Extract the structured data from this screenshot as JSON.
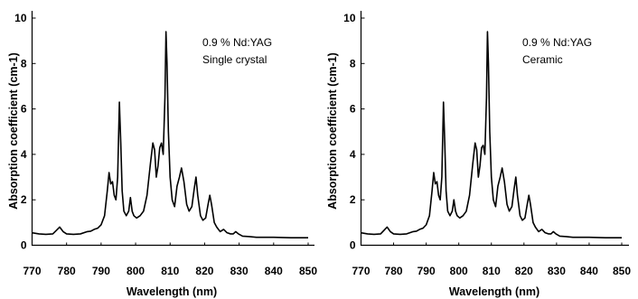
{
  "chart_data": [
    {
      "type": "line",
      "xlabel": "Wavelength (nm)",
      "ylabel": "Absorption coefficient (cm-1)",
      "xlim": [
        770,
        850
      ],
      "ylim": [
        0,
        10
      ],
      "x_ticks": [
        "770",
        "780",
        "790",
        "800",
        "810",
        "820",
        "830",
        "840",
        "850"
      ],
      "y_ticks": [
        "0",
        "2",
        "4",
        "6",
        "8",
        "10"
      ],
      "annotations": [
        "0.9 % Nd:YAG",
        "Single crystal"
      ],
      "grid": false,
      "series": [
        {
          "x": [
            770,
            772,
            774,
            776,
            777,
            778,
            779,
            780,
            782,
            784,
            786,
            787,
            788,
            789,
            790,
            791,
            791.8,
            792.3,
            792.8,
            793.3,
            793.8,
            794.3,
            794.8,
            795.3,
            795.7,
            796.1,
            796.6,
            797.3,
            798,
            798.5,
            799,
            799.5,
            800.3,
            801.3,
            802.3,
            803.3,
            804.3,
            805,
            805.5,
            806,
            806.5,
            807,
            807.5,
            808,
            808.5,
            808.8,
            809.1,
            809.5,
            810,
            810.6,
            811.3,
            812,
            812.7,
            813.3,
            814,
            814.8,
            815.5,
            816.3,
            817,
            817.5,
            818,
            818.8,
            819.5,
            820.3,
            821,
            821.5,
            822,
            822.8,
            823.5,
            824.5,
            825.5,
            826.5,
            827.5,
            828.3,
            829,
            829.8,
            831,
            833,
            835,
            840,
            845,
            850
          ],
          "y": [
            0.55,
            0.5,
            0.48,
            0.5,
            0.65,
            0.8,
            0.6,
            0.5,
            0.48,
            0.5,
            0.6,
            0.62,
            0.7,
            0.75,
            0.9,
            1.3,
            2.4,
            3.2,
            2.7,
            2.8,
            2.2,
            2.0,
            3.0,
            6.3,
            4.5,
            2.4,
            1.5,
            1.3,
            1.5,
            2.1,
            1.5,
            1.3,
            1.2,
            1.3,
            1.5,
            2.2,
            3.6,
            4.5,
            4.2,
            3.0,
            3.5,
            4.3,
            4.5,
            4.0,
            6.5,
            9.4,
            8.0,
            5.0,
            3.0,
            2.0,
            1.7,
            2.6,
            3.0,
            3.4,
            2.8,
            1.8,
            1.5,
            1.7,
            2.5,
            3.0,
            2.2,
            1.3,
            1.1,
            1.2,
            1.8,
            2.2,
            1.8,
            1.0,
            0.8,
            0.6,
            0.7,
            0.55,
            0.5,
            0.5,
            0.6,
            0.5,
            0.4,
            0.38,
            0.35,
            0.35,
            0.33,
            0.33
          ]
        }
      ]
    },
    {
      "type": "line",
      "xlabel": "Wavelength (nm)",
      "ylabel": "Absorption coefficient (cm-1)",
      "xlim": [
        770,
        850
      ],
      "ylim": [
        0,
        10
      ],
      "x_ticks": [
        "770",
        "780",
        "790",
        "800",
        "810",
        "820",
        "830",
        "840",
        "850"
      ],
      "y_ticks": [
        "0",
        "2",
        "4",
        "6",
        "8",
        "10"
      ],
      "annotations": [
        "0.9 % Nd:YAG",
        "Ceramic"
      ],
      "grid": false,
      "series": [
        {
          "x": [
            770,
            772,
            774,
            776,
            777,
            778,
            779,
            780,
            782,
            784,
            786,
            787,
            788,
            789,
            790,
            791,
            791.8,
            792.3,
            792.8,
            793.3,
            793.8,
            794.3,
            794.8,
            795.3,
            795.7,
            796.1,
            796.6,
            797.3,
            798,
            798.5,
            799,
            799.5,
            800.3,
            801.3,
            802.3,
            803.3,
            804.3,
            805,
            805.5,
            806,
            806.5,
            807,
            807.5,
            808,
            808.5,
            808.8,
            809.1,
            809.5,
            810,
            810.6,
            811.3,
            812,
            812.7,
            813.3,
            814,
            814.8,
            815.5,
            816.3,
            817,
            817.5,
            818,
            818.8,
            819.5,
            820.3,
            821,
            821.5,
            822,
            822.8,
            823.5,
            824.5,
            825.5,
            826.5,
            827.5,
            828.3,
            829,
            829.8,
            831,
            833,
            835,
            840,
            845,
            850
          ],
          "y": [
            0.55,
            0.5,
            0.48,
            0.5,
            0.65,
            0.8,
            0.6,
            0.5,
            0.48,
            0.5,
            0.6,
            0.62,
            0.7,
            0.75,
            0.9,
            1.3,
            2.4,
            3.2,
            2.7,
            2.8,
            2.2,
            2.0,
            3.0,
            6.3,
            4.5,
            2.4,
            1.5,
            1.3,
            1.5,
            2.0,
            1.5,
            1.3,
            1.2,
            1.3,
            1.5,
            2.2,
            3.6,
            4.5,
            4.2,
            3.0,
            3.5,
            4.3,
            4.4,
            4.0,
            6.5,
            9.4,
            8.0,
            5.0,
            3.0,
            2.0,
            1.7,
            2.6,
            3.0,
            3.4,
            2.8,
            1.8,
            1.5,
            1.7,
            2.5,
            3.0,
            2.2,
            1.3,
            1.1,
            1.2,
            1.8,
            2.2,
            1.8,
            1.0,
            0.8,
            0.6,
            0.7,
            0.55,
            0.5,
            0.5,
            0.6,
            0.5,
            0.4,
            0.38,
            0.35,
            0.35,
            0.33,
            0.33
          ]
        }
      ]
    }
  ]
}
